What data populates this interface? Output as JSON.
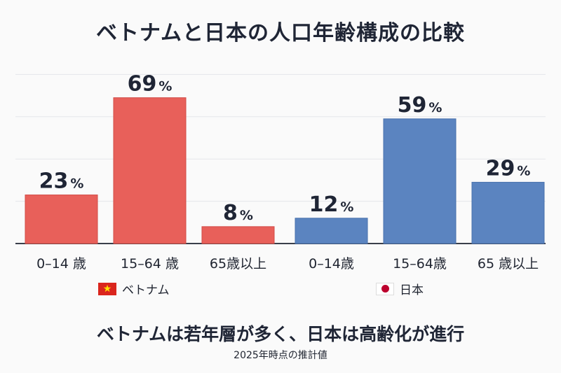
{
  "chart_data": {
    "type": "bar",
    "title": "ベトナムと日本の人口年齢構成の比較",
    "subtitle": "ベトナムは若年層が多く、日本は高齢化が進行",
    "note": "2025年時点の推計値",
    "ylim": [
      0,
      100
    ],
    "grid": true,
    "unit": "%",
    "series": [
      {
        "name": "ベトナム",
        "color": "#e8605a",
        "flag_icon": "vietnam-flag-icon",
        "categories": [
          "0–14 歳",
          "15–64 歳",
          "65歳以上"
        ],
        "values": [
          23,
          69,
          8
        ]
      },
      {
        "name": "日本",
        "color": "#5b84c0",
        "flag_icon": "japan-flag-icon",
        "categories": [
          "0–14歳",
          "15–64歳",
          "65 歳以上"
        ],
        "values": [
          12,
          59,
          29
        ]
      }
    ]
  }
}
